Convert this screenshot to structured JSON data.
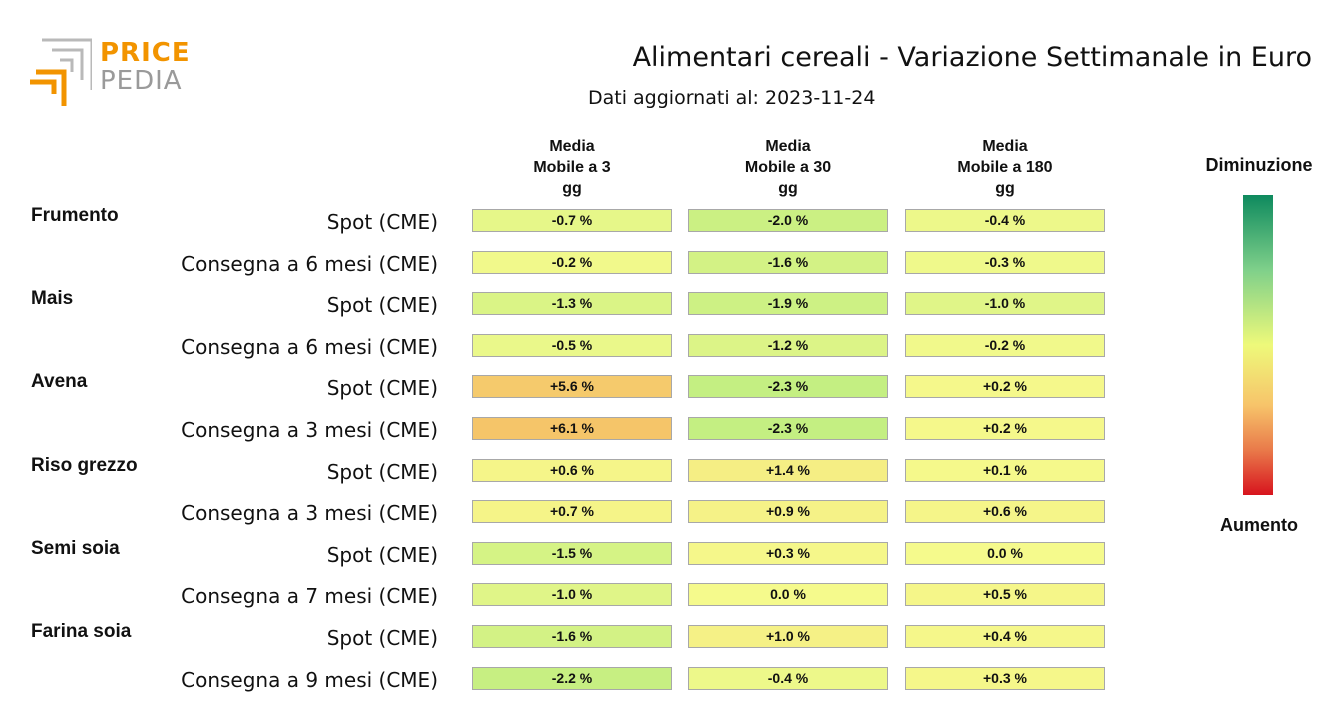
{
  "brand": {
    "price": "PRICE",
    "pedia": "PEDIA"
  },
  "colors": {
    "orange": "#f29400",
    "gray": "#9a9a9a",
    "scale_green": "#0e8a5e",
    "scale_yellow": "#eef97a",
    "scale_red": "#d7141e"
  },
  "chart_data": {
    "type": "table",
    "title": "Alimentari cereali - Variazione Settimanale in Euro",
    "subtitle": "Dati aggiornati al: 2023-11-24",
    "columns": [
      "Media\nMobile a 3\ngg",
      "Media\nMobile a 30\ngg",
      "Media\nMobile a 180\ngg"
    ],
    "legend": {
      "top": "Diminuzione",
      "bottom": "Aumento",
      "placement": "right"
    },
    "rows": [
      {
        "group": "Frumento",
        "label": "Spot (CME)",
        "values": [
          -0.7,
          -2.0,
          -0.4
        ],
        "display": [
          "-0.7 %",
          "-2.0 %",
          "-0.4 %"
        ]
      },
      {
        "group": "",
        "label": "Consegna a 6 mesi (CME)",
        "values": [
          -0.2,
          -1.6,
          -0.3
        ],
        "display": [
          "-0.2 %",
          "-1.6 %",
          "-0.3 %"
        ]
      },
      {
        "group": "Mais",
        "label": "Spot (CME)",
        "values": [
          -1.3,
          -1.9,
          -1.0
        ],
        "display": [
          "-1.3 %",
          "-1.9 %",
          "-1.0 %"
        ]
      },
      {
        "group": "",
        "label": "Consegna a 6 mesi (CME)",
        "values": [
          -0.5,
          -1.2,
          -0.2
        ],
        "display": [
          "-0.5 %",
          "-1.2 %",
          "-0.2 %"
        ]
      },
      {
        "group": "Avena",
        "label": "Spot (CME)",
        "values": [
          5.6,
          -2.3,
          0.2
        ],
        "display": [
          "+5.6 %",
          "-2.3 %",
          "+0.2 %"
        ]
      },
      {
        "group": "",
        "label": "Consegna a 3 mesi (CME)",
        "values": [
          6.1,
          -2.3,
          0.2
        ],
        "display": [
          "+6.1 %",
          "-2.3 %",
          "+0.2 %"
        ]
      },
      {
        "group": "Riso grezzo",
        "label": "Spot (CME)",
        "values": [
          0.6,
          1.4,
          0.1
        ],
        "display": [
          "+0.6 %",
          "+1.4 %",
          "+0.1 %"
        ]
      },
      {
        "group": "",
        "label": "Consegna a 3 mesi (CME)",
        "values": [
          0.7,
          0.9,
          0.6
        ],
        "display": [
          "+0.7 %",
          "+0.9 %",
          "+0.6 %"
        ]
      },
      {
        "group": "Semi soia",
        "label": "Spot (CME)",
        "values": [
          -1.5,
          0.3,
          0.0
        ],
        "display": [
          "-1.5 %",
          "+0.3 %",
          "0.0 %"
        ]
      },
      {
        "group": "",
        "label": "Consegna a 7 mesi (CME)",
        "values": [
          -1.0,
          0.0,
          0.5
        ],
        "display": [
          "-1.0 %",
          "0.0 %",
          "+0.5 %"
        ]
      },
      {
        "group": "Farina soia",
        "label": "Spot (CME)",
        "values": [
          -1.6,
          1.0,
          0.4
        ],
        "display": [
          "-1.6 %",
          "+1.0 %",
          "+0.4 %"
        ]
      },
      {
        "group": "",
        "label": "Consegna a 9 mesi (CME)",
        "values": [
          -2.2,
          -0.4,
          0.3
        ],
        "display": [
          "-2.2 %",
          "-0.4 %",
          "+0.3 %"
        ]
      }
    ]
  }
}
